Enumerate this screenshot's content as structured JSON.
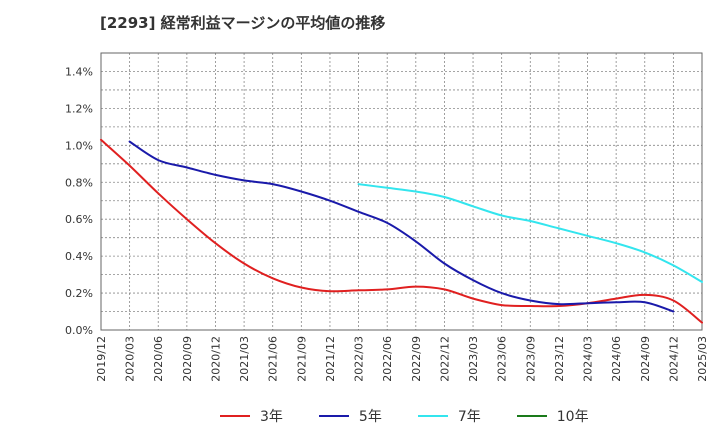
{
  "chart_data": {
    "type": "line",
    "title": "[2293]  経常利益マージンの平均値の推移",
    "xlabel": "",
    "ylabel": "",
    "x_ticks": [
      "2019/12",
      "2020/03",
      "2020/06",
      "2020/09",
      "2020/12",
      "2021/03",
      "2021/06",
      "2021/09",
      "2021/12",
      "2022/03",
      "2022/06",
      "2022/09",
      "2022/12",
      "2023/03",
      "2023/06",
      "2023/09",
      "2023/12",
      "2024/03",
      "2024/06",
      "2024/09",
      "2024/12",
      "2025/03"
    ],
    "y_ticks": [
      "0.0%",
      "0.2%",
      "0.4%",
      "0.6%",
      "0.8%",
      "1.0%",
      "1.2%",
      "1.4%"
    ],
    "ylim": [
      0,
      1.5
    ],
    "grid": true,
    "legend_position": "bottom",
    "series": [
      {
        "name": "3年",
        "color": "#e02020",
        "start_index": 0,
        "values": [
          1.03,
          0.89,
          0.74,
          0.6,
          0.47,
          0.36,
          0.28,
          0.23,
          0.21,
          0.215,
          0.22,
          0.235,
          0.22,
          0.17,
          0.135,
          0.13,
          0.13,
          0.145,
          0.17,
          0.19,
          0.16,
          0.04
        ]
      },
      {
        "name": "5年",
        "color": "#1a1aaa",
        "start_index": 1,
        "values": [
          1.02,
          0.92,
          0.88,
          0.84,
          0.81,
          0.79,
          0.75,
          0.7,
          0.64,
          0.58,
          0.48,
          0.36,
          0.27,
          0.2,
          0.16,
          0.14,
          0.145,
          0.15,
          0.15,
          0.1
        ]
      },
      {
        "name": "7年",
        "color": "#33e5ee",
        "start_index": 9,
        "values": [
          0.79,
          0.77,
          0.75,
          0.72,
          0.67,
          0.62,
          0.59,
          0.55,
          0.51,
          0.47,
          0.42,
          0.35,
          0.26
        ]
      },
      {
        "name": "10年",
        "color": "#1a7a1a",
        "start_index": 0,
        "values": []
      }
    ]
  }
}
